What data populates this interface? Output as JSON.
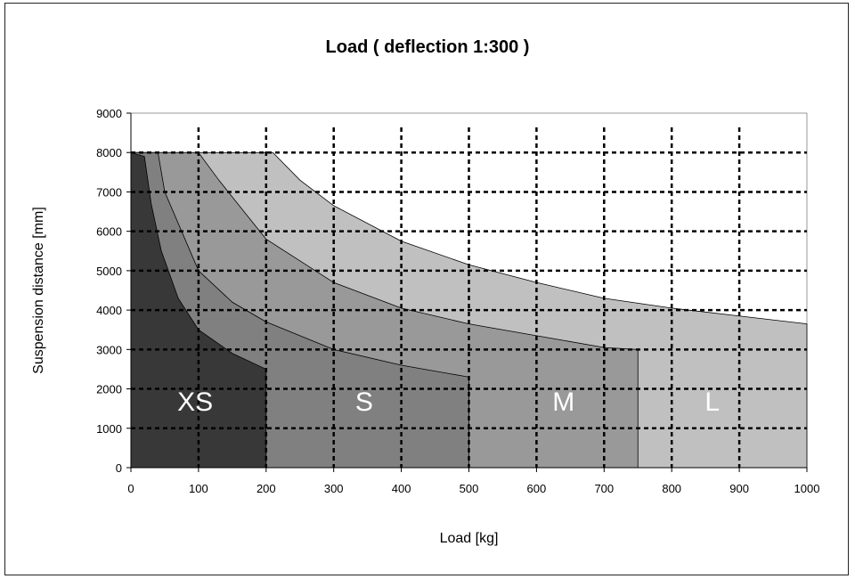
{
  "chart_data": {
    "type": "area",
    "title": "Load ( deflection 1:300 )",
    "xlabel": "Load [kg]",
    "ylabel": "Suspension distance [mm]",
    "xlim": [
      0,
      1000
    ],
    "ylim": [
      0,
      9000
    ],
    "x_ticks": [
      0,
      100,
      200,
      300,
      400,
      500,
      600,
      700,
      800,
      900,
      1000
    ],
    "y_ticks": [
      0,
      1000,
      2000,
      3000,
      4000,
      5000,
      6000,
      7000,
      8000,
      9000
    ],
    "grid": "dashed at every major tick",
    "series": [
      {
        "name": "L",
        "color": "#c0c0c0",
        "max_load": 1000,
        "points": [
          [
            0,
            8000
          ],
          [
            210,
            8000
          ],
          [
            250,
            7300
          ],
          [
            300,
            6650
          ],
          [
            400,
            5750
          ],
          [
            500,
            5150
          ],
          [
            600,
            4700
          ],
          [
            700,
            4300
          ],
          [
            800,
            4050
          ],
          [
            900,
            3850
          ],
          [
            1000,
            3650
          ]
        ]
      },
      {
        "name": "M",
        "color": "#999999",
        "max_load": 750,
        "points": [
          [
            0,
            8000
          ],
          [
            100,
            8000
          ],
          [
            130,
            7300
          ],
          [
            200,
            5800
          ],
          [
            300,
            4700
          ],
          [
            400,
            4050
          ],
          [
            500,
            3650
          ],
          [
            600,
            3350
          ],
          [
            700,
            3050
          ],
          [
            750,
            3000
          ]
        ]
      },
      {
        "name": "S",
        "color": "#808080",
        "max_load": 500,
        "points": [
          [
            0,
            8000
          ],
          [
            40,
            8000
          ],
          [
            50,
            7000
          ],
          [
            75,
            6000
          ],
          [
            100,
            5000
          ],
          [
            150,
            4200
          ],
          [
            200,
            3700
          ],
          [
            300,
            3000
          ],
          [
            400,
            2600
          ],
          [
            500,
            2300
          ]
        ]
      },
      {
        "name": "XS",
        "color": "#383838",
        "max_load": 200,
        "points": [
          [
            0,
            8000
          ],
          [
            20,
            7900
          ],
          [
            30,
            6700
          ],
          [
            45,
            5500
          ],
          [
            70,
            4300
          ],
          [
            100,
            3500
          ],
          [
            150,
            2900
          ],
          [
            200,
            2500
          ]
        ]
      }
    ],
    "region_labels": [
      {
        "text": "XS",
        "x": 95,
        "y": 1450
      },
      {
        "text": "S",
        "x": 345,
        "y": 1450
      },
      {
        "text": "M",
        "x": 640,
        "y": 1450
      },
      {
        "text": "L",
        "x": 860,
        "y": 1450
      }
    ]
  }
}
